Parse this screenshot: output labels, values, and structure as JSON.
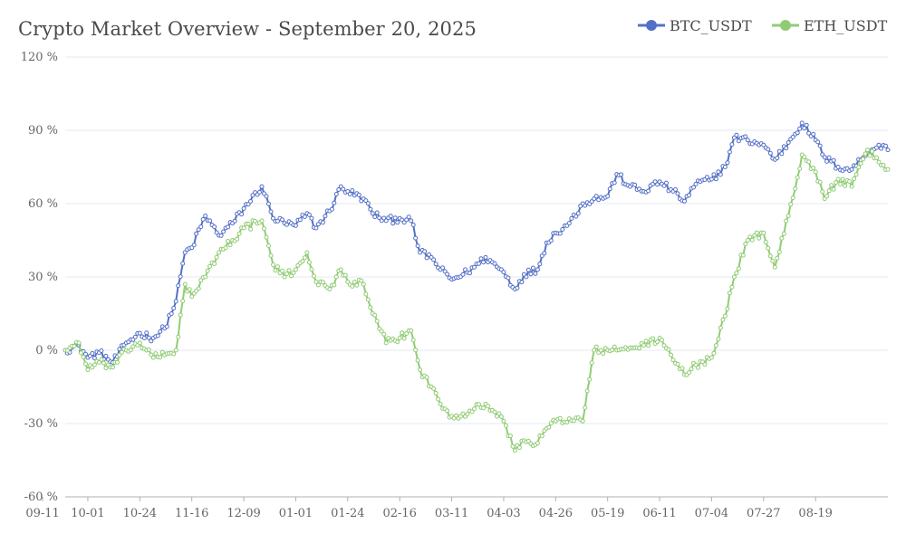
{
  "chart_data": {
    "type": "line",
    "title": "Crypto Market Overview - September 20, 2025",
    "xlabel": "",
    "ylabel": "",
    "x_start": "2024-09-21",
    "x_end": "2025-09-20",
    "x_tick_labels": [
      "10-01",
      "10-24",
      "11-16",
      "12-09",
      "01-01",
      "01-24",
      "02-16",
      "03-11",
      "04-03",
      "04-26",
      "05-19",
      "06-11",
      "07-04",
      "07-27",
      "08-19",
      "09-11"
    ],
    "y_ticks": [
      120,
      90,
      60,
      30,
      0,
      -30,
      -60
    ],
    "y_tick_labels": [
      "120 %",
      "90 %",
      "60 %",
      "30 %",
      "0 %",
      "-30 %",
      "-60 %"
    ],
    "ylim": [
      -60,
      120
    ],
    "y_unit": "%",
    "grid": "horizontal",
    "legend_position": "top-right",
    "series": [
      {
        "name": "BTC_USDT",
        "color": "#5470c6",
        "keyframes": [
          [
            "2024-09-21",
            0
          ],
          [
            "2024-09-27",
            2
          ],
          [
            "2024-10-01",
            -3
          ],
          [
            "2024-10-06",
            -1
          ],
          [
            "2024-10-12",
            -5
          ],
          [
            "2024-10-18",
            3
          ],
          [
            "2024-10-24",
            7
          ],
          [
            "2024-10-30",
            5
          ],
          [
            "2024-11-04",
            9
          ],
          [
            "2024-11-09",
            20
          ],
          [
            "2024-11-13",
            40
          ],
          [
            "2024-11-16",
            42
          ],
          [
            "2024-11-22",
            55
          ],
          [
            "2024-11-28",
            47
          ],
          [
            "2024-12-04",
            52
          ],
          [
            "2024-12-09",
            58
          ],
          [
            "2024-12-17",
            67
          ],
          [
            "2024-12-22",
            54
          ],
          [
            "2024-12-27",
            52
          ],
          [
            "2025-01-01",
            51
          ],
          [
            "2025-01-06",
            56
          ],
          [
            "2025-01-10",
            50
          ],
          [
            "2025-01-16",
            57
          ],
          [
            "2025-01-21",
            67
          ],
          [
            "2025-01-24",
            65
          ],
          [
            "2025-01-31",
            62
          ],
          [
            "2025-02-04",
            56
          ],
          [
            "2025-02-10",
            53
          ],
          [
            "2025-02-16",
            54
          ],
          [
            "2025-02-21",
            53
          ],
          [
            "2025-02-25",
            40
          ],
          [
            "2025-03-02",
            38
          ],
          [
            "2025-03-06",
            33
          ],
          [
            "2025-03-11",
            29
          ],
          [
            "2025-03-16",
            31
          ],
          [
            "2025-03-21",
            34
          ],
          [
            "2025-03-26",
            38
          ],
          [
            "2025-04-03",
            32
          ],
          [
            "2025-04-08",
            25
          ],
          [
            "2025-04-12",
            31
          ],
          [
            "2025-04-18",
            33
          ],
          [
            "2025-04-22",
            44
          ],
          [
            "2025-04-26",
            48
          ],
          [
            "2025-05-02",
            52
          ],
          [
            "2025-05-08",
            60
          ],
          [
            "2025-05-13",
            62
          ],
          [
            "2025-05-19",
            63
          ],
          [
            "2025-05-23",
            72
          ],
          [
            "2025-05-29",
            67
          ],
          [
            "2025-06-04",
            65
          ],
          [
            "2025-06-11",
            69
          ],
          [
            "2025-06-17",
            65
          ],
          [
            "2025-06-22",
            61
          ],
          [
            "2025-06-27",
            68
          ],
          [
            "2025-07-04",
            70
          ],
          [
            "2025-07-10",
            75
          ],
          [
            "2025-07-14",
            87
          ],
          [
            "2025-07-20",
            86
          ],
          [
            "2025-07-27",
            84
          ],
          [
            "2025-08-01",
            78
          ],
          [
            "2025-08-07",
            85
          ],
          [
            "2025-08-13",
            93
          ],
          [
            "2025-08-19",
            86
          ],
          [
            "2025-08-23",
            79
          ],
          [
            "2025-08-29",
            75
          ],
          [
            "2025-09-04",
            74
          ],
          [
            "2025-09-11",
            81
          ],
          [
            "2025-09-16",
            84
          ],
          [
            "2025-09-20",
            82
          ]
        ]
      },
      {
        "name": "ETH_USDT",
        "color": "#91cc75",
        "keyframes": [
          [
            "2024-09-21",
            0
          ],
          [
            "2024-09-27",
            3
          ],
          [
            "2024-10-01",
            -8
          ],
          [
            "2024-10-06",
            -5
          ],
          [
            "2024-10-12",
            -7
          ],
          [
            "2024-10-18",
            0
          ],
          [
            "2024-10-24",
            3
          ],
          [
            "2024-10-30",
            -3
          ],
          [
            "2024-11-04",
            -2
          ],
          [
            "2024-11-09",
            0
          ],
          [
            "2024-11-13",
            27
          ],
          [
            "2024-11-16",
            22
          ],
          [
            "2024-11-22",
            30
          ],
          [
            "2024-11-28",
            40
          ],
          [
            "2024-12-04",
            45
          ],
          [
            "2024-12-09",
            50
          ],
          [
            "2024-12-17",
            53
          ],
          [
            "2024-12-22",
            35
          ],
          [
            "2024-12-27",
            30
          ],
          [
            "2025-01-01",
            33
          ],
          [
            "2025-01-06",
            40
          ],
          [
            "2025-01-10",
            28
          ],
          [
            "2025-01-16",
            25
          ],
          [
            "2025-01-21",
            33
          ],
          [
            "2025-01-24",
            28
          ],
          [
            "2025-01-31",
            27
          ],
          [
            "2025-02-04",
            15
          ],
          [
            "2025-02-10",
            3
          ],
          [
            "2025-02-16",
            5
          ],
          [
            "2025-02-21",
            8
          ],
          [
            "2025-02-25",
            -8
          ],
          [
            "2025-03-02",
            -15
          ],
          [
            "2025-03-06",
            -22
          ],
          [
            "2025-03-11",
            -27
          ],
          [
            "2025-03-16",
            -26
          ],
          [
            "2025-03-21",
            -24
          ],
          [
            "2025-03-26",
            -22
          ],
          [
            "2025-04-03",
            -29
          ],
          [
            "2025-04-08",
            -41
          ],
          [
            "2025-04-12",
            -37
          ],
          [
            "2025-04-18",
            -38
          ],
          [
            "2025-04-22",
            -32
          ],
          [
            "2025-04-26",
            -29
          ],
          [
            "2025-05-02",
            -28
          ],
          [
            "2025-05-08",
            -29
          ],
          [
            "2025-05-13",
            0
          ],
          [
            "2025-05-19",
            0
          ],
          [
            "2025-05-23",
            0
          ],
          [
            "2025-05-29",
            1
          ],
          [
            "2025-06-04",
            2
          ],
          [
            "2025-06-11",
            5
          ],
          [
            "2025-06-17",
            -4
          ],
          [
            "2025-06-22",
            -10
          ],
          [
            "2025-06-27",
            -6
          ],
          [
            "2025-07-04",
            -3
          ],
          [
            "2025-07-10",
            14
          ],
          [
            "2025-07-14",
            30
          ],
          [
            "2025-07-20",
            45
          ],
          [
            "2025-07-27",
            48
          ],
          [
            "2025-08-01",
            34
          ],
          [
            "2025-08-07",
            55
          ],
          [
            "2025-08-13",
            80
          ],
          [
            "2025-08-19",
            73
          ],
          [
            "2025-08-23",
            62
          ],
          [
            "2025-08-29",
            70
          ],
          [
            "2025-09-04",
            67
          ],
          [
            "2025-09-11",
            82
          ],
          [
            "2025-09-16",
            77
          ],
          [
            "2025-09-20",
            74
          ]
        ]
      }
    ]
  }
}
